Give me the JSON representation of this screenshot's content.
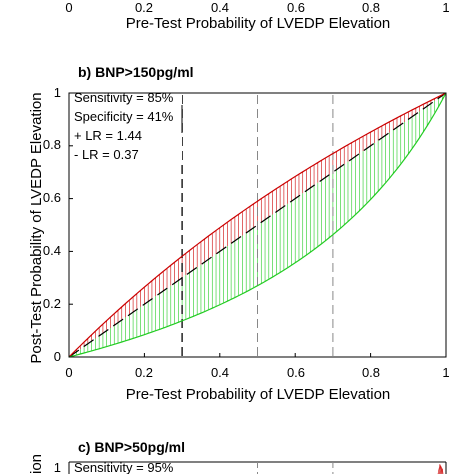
{
  "chart_data": [
    {
      "type": "line",
      "title": "",
      "xlabel": "Pre-Test Probability of LVEDP Elevation",
      "ylabel": "",
      "xlim": [
        0,
        1
      ],
      "x_tick_labels": [
        "0",
        "0.2",
        "0.4",
        "0.6",
        "0.8",
        "1"
      ]
    },
    {
      "type": "line",
      "title": "b) BNP>150pg/ml",
      "xlabel": "Pre-Test Probability of LVEDP Elevation",
      "ylabel": "Post-Test Probability of LVEDP Elevation",
      "xlim": [
        0,
        1
      ],
      "ylim": [
        0,
        1
      ],
      "x_tick_labels": [
        "0",
        "0.2",
        "0.4",
        "0.6",
        "0.8",
        "1"
      ],
      "y_tick_labels": [
        "0",
        "0.2",
        "0.4",
        "0.6",
        "0.8",
        "1"
      ],
      "grid": false,
      "positive_lr": 1.44,
      "negative_lr": 0.37,
      "reference_lines_x": [
        0.3,
        0.5,
        0.7
      ],
      "series": [
        {
          "style": "dashed",
          "color": "#000000",
          "x": [
            0,
            1
          ],
          "values": [
            0,
            1
          ]
        },
        {
          "color": "#cc0000",
          "x": [
            0,
            0.1,
            0.2,
            0.3,
            0.4,
            0.5,
            0.6,
            0.7,
            0.8,
            0.9,
            1.0
          ],
          "values": [
            0,
            0.138,
            0.265,
            0.382,
            0.49,
            0.59,
            0.684,
            0.771,
            0.852,
            0.928,
            1.0
          ]
        },
        {
          "color": "#22cc22",
          "x": [
            0,
            0.1,
            0.2,
            0.3,
            0.4,
            0.5,
            0.6,
            0.7,
            0.8,
            0.9,
            1.0
          ],
          "values": [
            0,
            0.039,
            0.085,
            0.137,
            0.198,
            0.27,
            0.357,
            0.463,
            0.597,
            0.769,
            1.0
          ]
        }
      ],
      "annotations": [
        "Sensitivity = 85%",
        "Specificity = 41%",
        "+ LR = 1.44",
        "- LR = 0.37"
      ]
    },
    {
      "type": "line",
      "title": "c) BNP>50pg/ml",
      "ylim": [
        0,
        1
      ],
      "y_tick_labels": [
        "1"
      ],
      "annotations": [
        "Sensitivity = 95%"
      ]
    }
  ],
  "colors": {
    "positive": "#cc0000",
    "negative": "#22cc22",
    "axis": "#000000",
    "reference": "#000000"
  }
}
